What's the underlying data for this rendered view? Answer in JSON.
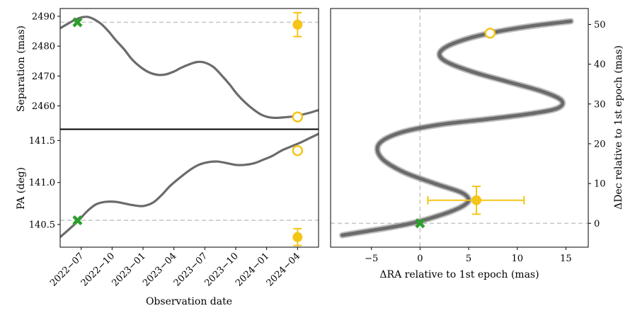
{
  "colors": {
    "track": "#6b6b6b",
    "measurement": "#f5c518",
    "first_epoch": "#2ca02c",
    "reference": "#c8c8c8"
  },
  "chart_data": [
    {
      "type": "line",
      "panel": "separation",
      "ylabel": "Separation (mas)",
      "xlim": [
        2022.33,
        2024.42
      ],
      "ylim": [
        2452.3,
        2492.6
      ],
      "yticks": [
        2460,
        2470,
        2480,
        2490
      ],
      "ytick_labels": [
        "2460",
        "2470",
        "2480",
        "2490"
      ],
      "reference_line": 2488,
      "track": {
        "x": [
          2022.33,
          2022.4,
          2022.45,
          2022.5,
          2022.55,
          2022.6,
          2022.66,
          2022.72,
          2022.78,
          2022.85,
          2022.91,
          2022.98,
          2023.05,
          2023.12,
          2023.18,
          2023.25,
          2023.31,
          2023.38,
          2023.44,
          2023.5,
          2023.57,
          2023.63,
          2023.7,
          2023.76,
          2023.83,
          2023.9,
          2023.96,
          2024.02,
          2024.08,
          2024.15,
          2024.22,
          2024.28,
          2024.34,
          2024.42
        ],
        "y": [
          2486,
          2487.7,
          2488.8,
          2489.6,
          2489.8,
          2489.1,
          2487.5,
          2485.0,
          2482.0,
          2478.8,
          2475.6,
          2473.0,
          2471.2,
          2470.4,
          2470.5,
          2471.5,
          2472.8,
          2474.0,
          2474.7,
          2474.5,
          2473.0,
          2470.5,
          2467.2,
          2464.0,
          2461.0,
          2458.6,
          2457.0,
          2456.2,
          2456.0,
          2456.2,
          2456.5,
          2457.0,
          2457.6,
          2458.6
        ]
      },
      "first_epoch": {
        "x": 2022.47,
        "y": 2488
      },
      "predicted": {
        "x": 2024.25,
        "y": 2456.3
      },
      "measured": {
        "x": 2024.25,
        "y": 2487.2,
        "err": 4
      }
    },
    {
      "type": "line",
      "panel": "position_angle",
      "ylabel": "PA (deg)",
      "xlabel": "Observation date",
      "xlim": [
        2022.33,
        2024.42
      ],
      "ylim": [
        140.23,
        141.63
      ],
      "yticks": [
        140.5,
        141.0,
        141.5
      ],
      "ytick_labels": [
        "140.5",
        "141.0",
        "141.5"
      ],
      "xticks": [
        2022.5,
        2022.75,
        2023.0,
        2023.25,
        2023.5,
        2023.75,
        2024.0,
        2024.25
      ],
      "xtick_labels": [
        "2022−07",
        "2022−10",
        "2023−01",
        "2023−04",
        "2023−07",
        "2023−10",
        "2024−01",
        "2024−04"
      ],
      "reference_line": 140.55,
      "track": {
        "x": [
          2022.33,
          2022.4,
          2022.48,
          2022.55,
          2022.62,
          2022.7,
          2022.78,
          2022.85,
          2022.92,
          2023.0,
          2023.08,
          2023.15,
          2023.22,
          2023.3,
          2023.38,
          2023.45,
          2023.52,
          2023.6,
          2023.68,
          2023.75,
          2023.82,
          2023.9,
          2023.97,
          2024.05,
          2024.12,
          2024.2,
          2024.28,
          2024.35,
          2024.42
        ],
        "y": [
          140.35,
          140.44,
          140.55,
          140.66,
          140.74,
          140.77,
          140.77,
          140.75,
          140.73,
          140.72,
          140.76,
          140.85,
          140.96,
          141.06,
          141.15,
          141.21,
          141.24,
          141.25,
          141.23,
          141.21,
          141.21,
          141.23,
          141.27,
          141.32,
          141.38,
          141.43,
          141.48,
          141.53,
          141.58
        ]
      },
      "first_epoch": {
        "x": 2022.47,
        "y": 140.55
      },
      "predicted": {
        "x": 2024.25,
        "y": 141.38
      },
      "measured": {
        "x": 2024.25,
        "y": 140.35,
        "err": 0.1
      }
    },
    {
      "type": "line",
      "panel": "relative_offset",
      "xlabel": "ΔRA relative to 1st epoch (mas)",
      "ylabel": "ΔDec relative to 1st epoch (mas)",
      "ylabel_position": "right",
      "xlim": [
        -9.2,
        17.3
      ],
      "ylim": [
        -6.0,
        54.0
      ],
      "xticks": [
        -5,
        0,
        5,
        10,
        15
      ],
      "xtick_labels": [
        "−5",
        "0",
        "5",
        "10",
        "15"
      ],
      "yticks": [
        0,
        10,
        20,
        30,
        40,
        50
      ],
      "ytick_labels": [
        "0",
        "10",
        "20",
        "30",
        "40",
        "50"
      ],
      "reference_x": 0,
      "reference_y": 0,
      "track": {
        "x": [
          -8.0,
          -5.5,
          -3.0,
          -0.5,
          1.5,
          3.2,
          4.5,
          5.0,
          4.2,
          1.5,
          -1.8,
          -4.0,
          -4.2,
          -2.0,
          2.0,
          7.0,
          11.5,
          14.2,
          14.5,
          12.5,
          9.0,
          5.5,
          2.8,
          2.0,
          2.8,
          5.0,
          8.0,
          11.5,
          15.5
        ],
        "y": [
          -3.0,
          -2.0,
          -1.0,
          0.2,
          1.6,
          3.0,
          4.5,
          6.0,
          7.8,
          10.0,
          13.0,
          16.5,
          20.0,
          22.8,
          24.8,
          26.2,
          27.6,
          29.0,
          31.0,
          33.2,
          35.6,
          38.0,
          40.5,
          42.5,
          44.5,
          46.5,
          48.2,
          49.6,
          50.8
        ]
      },
      "first_epoch": {
        "x": 0,
        "y": 0
      },
      "predicted": {
        "x": 7.2,
        "y": 47.8
      },
      "measured": {
        "x": 5.8,
        "y": 5.8,
        "xerr": [
          5.0,
          4.9
        ],
        "yerr": 3.5
      }
    }
  ]
}
